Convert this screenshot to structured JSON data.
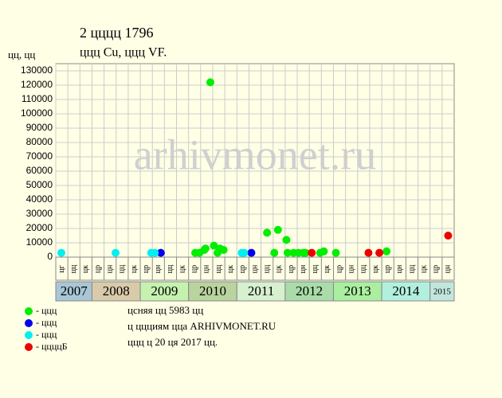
{
  "chart_data": {
    "type": "scatter",
    "title": "2 цццц 1796",
    "subtitle": "ццц Cu, ццц VF.",
    "y_label": "цц, цц",
    "watermark": "arhivmonet.ru",
    "ylim": [
      0,
      135000
    ],
    "yticks": [
      0,
      10000,
      20000,
      30000,
      40000,
      50000,
      60000,
      70000,
      80000,
      90000,
      100000,
      110000,
      120000,
      130000
    ],
    "xlim": [
      0,
      33
    ],
    "grid": true,
    "years": [
      {
        "year": "2007",
        "color": "#a9c6d6",
        "columns": [
          "цг",
          "цц",
          "цк"
        ]
      },
      {
        "year": "2008",
        "color": "#d9caa9",
        "columns": [
          "цр",
          "цн",
          "цц",
          "цк"
        ]
      },
      {
        "year": "2009",
        "color": "#c6f2b0",
        "columns": [
          "цр",
          "цн",
          "цц",
          "цк"
        ]
      },
      {
        "year": "2010",
        "color": "#b9d49f",
        "columns": [
          "цр",
          "цн",
          "цц",
          "цк"
        ]
      },
      {
        "year": "2011",
        "color": "#d6f0d0",
        "columns": [
          "цр",
          "цн",
          "цц",
          "цк"
        ]
      },
      {
        "year": "2012",
        "color": "#a9dca9",
        "columns": [
          "цр",
          "цн",
          "цц",
          "цк"
        ]
      },
      {
        "year": "2013",
        "color": "#aaeea0",
        "columns": [
          "цр",
          "цн",
          "цц",
          "цк"
        ]
      },
      {
        "year": "2014",
        "color": "#b2f0de",
        "columns": [
          "цр",
          "цн",
          "цц",
          "цк"
        ]
      },
      {
        "year": "2015",
        "color": "#c2e6dc",
        "columns": [
          "цр",
          "цн"
        ]
      }
    ],
    "series": [
      {
        "name": "- ццц",
        "color": "#00ee00",
        "x": [
          11.55,
          11.9,
          12.3,
          12.4,
          12.8,
          13.1,
          13.4,
          13.6,
          13.9,
          17.5,
          18.1,
          18.4,
          19.1,
          19.2,
          19.7,
          20.1,
          20.5,
          20.7,
          21.9,
          22.2,
          23.2,
          27.4
        ],
        "values": [
          3000,
          3000,
          5000,
          6000,
          122000,
          8000,
          3000,
          6000,
          5000,
          17000,
          3000,
          19000,
          12000,
          3000,
          3000,
          3000,
          3000,
          3000,
          3000,
          4000,
          3000,
          4000
        ]
      },
      {
        "name": "- ццц",
        "color": "#0000ee",
        "x": [
          8.7,
          16.2
        ],
        "values": [
          3000,
          3000
        ]
      },
      {
        "name": "- ццц",
        "color": "#00f0f0",
        "x": [
          0.46,
          4.95,
          7.9,
          8.2,
          15.4,
          15.6
        ],
        "values": [
          3000,
          3000,
          3000,
          3000,
          3000,
          3000
        ]
      },
      {
        "name": "- ццццБ",
        "color": "#ee0000",
        "x": [
          21.2,
          25.9,
          26.8,
          32.5
        ],
        "values": [
          3000,
          3000,
          3000,
          15000
        ]
      }
    ],
    "notes": [
      "цcняя цц 5983 цц",
      "ц ццциям цца ARHIVMONET.RU",
      "ццц ц 20 ця 2017 цц."
    ]
  }
}
